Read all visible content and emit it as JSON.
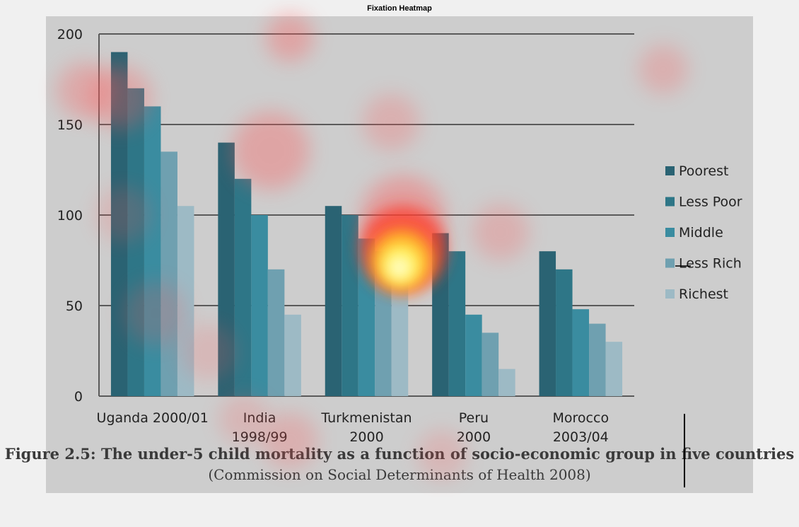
{
  "window": {
    "title": "Fixation Heatmap"
  },
  "colors": {
    "background": "#cdcdcd",
    "gridline": "#5a5a5a",
    "series": [
      "#2a6373",
      "#2e7687",
      "#3a8ca0",
      "#6fa0b0",
      "#9dbac5"
    ]
  },
  "chart_data": {
    "type": "bar",
    "categories": [
      "Uganda 2000/01",
      "India 1998/99",
      "Turkmenistan 2000",
      "Peru 2000",
      "Morocco 2003/04"
    ],
    "category_lines": [
      [
        "Uganda 2000/01"
      ],
      [
        "India",
        "1998/99"
      ],
      [
        "Turkmenistan",
        "2000"
      ],
      [
        "Peru",
        "2000"
      ],
      [
        "Morocco",
        "2003/04"
      ]
    ],
    "series": [
      {
        "name": "Poorest",
        "values": [
          190,
          140,
          105,
          90,
          80
        ]
      },
      {
        "name": "Less Poor",
        "values": [
          170,
          120,
          100,
          80,
          70
        ]
      },
      {
        "name": "Middle",
        "values": [
          160,
          100,
          87,
          45,
          48
        ]
      },
      {
        "name": "Less Rich",
        "values": [
          135,
          70,
          80,
          35,
          40
        ]
      },
      {
        "name": "Richest",
        "values": [
          105,
          45,
          65,
          15,
          30
        ]
      }
    ],
    "ylim": [
      0,
      200
    ],
    "yticks": [
      0,
      50,
      100,
      150,
      200
    ],
    "grid": true,
    "legend": "right"
  },
  "caption": {
    "main": "Figure 2.5: The under-5 child mortality as a function of socio-economic group in five countries",
    "sub": "(Commission on Social Determinants of Health 2008)"
  },
  "overlay": {
    "type": "fixation-heatmap"
  }
}
